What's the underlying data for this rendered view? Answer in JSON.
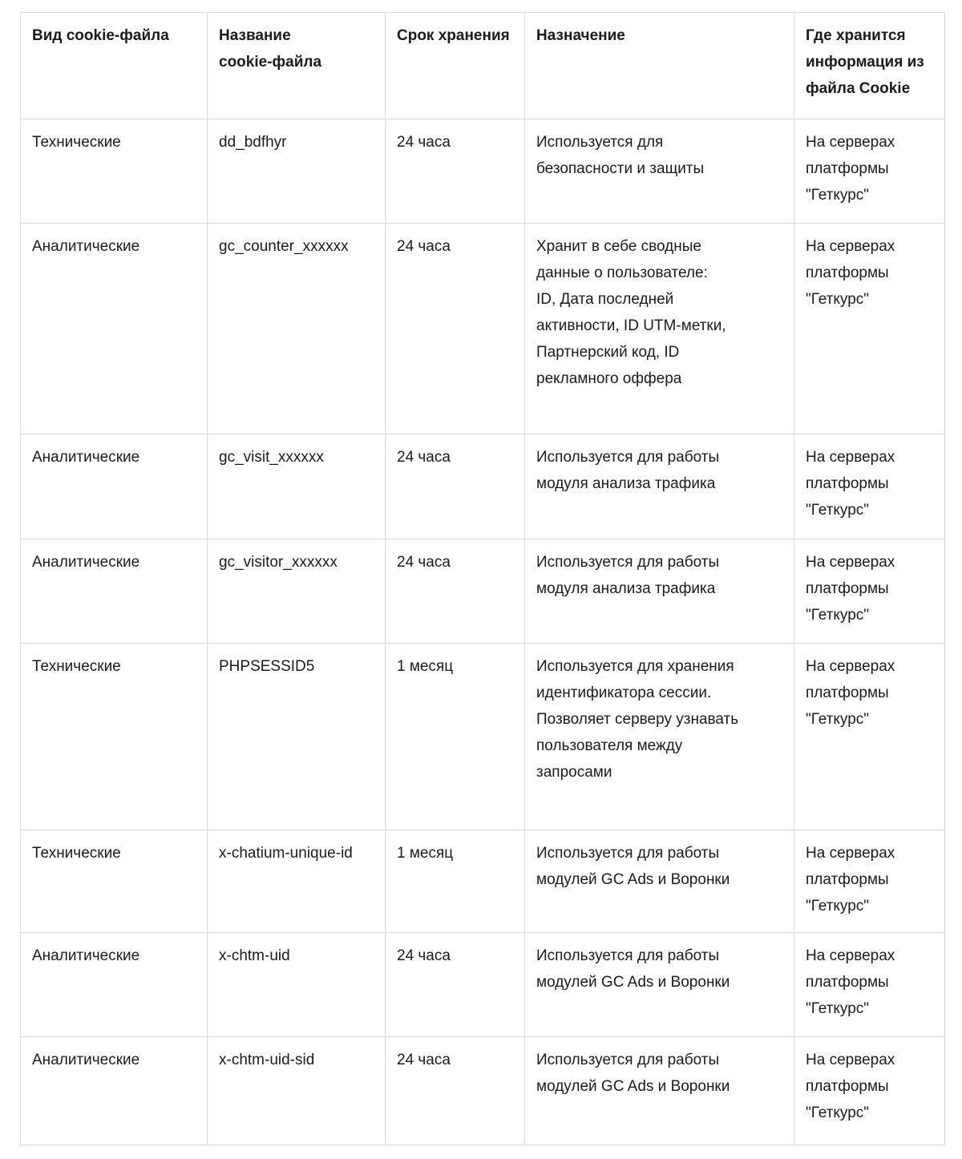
{
  "table": {
    "headers": [
      "Вид cookie-файла",
      "Название\ncookie-файла",
      "Срок хранения",
      "Назначение",
      "Где хранится\nинформация из\nфайла Cookie"
    ],
    "rows": [
      {
        "type": "Технические",
        "name": "dd_bdfhyr",
        "duration": "24 часа",
        "purpose": "Используется для\nбезопасности и защиты",
        "storage": "На серверах\nплатформы\n\"Геткурс\""
      },
      {
        "type": "Аналитические",
        "name": "gc_counter_xxxxxx",
        "duration": "24 часа",
        "purpose": "Хранит в себе сводные\nданные о пользователе:\nID, Дата последней\nактивности, ID UTM-метки,\nПартнерский код, ID\nрекламного оффера",
        "storage": "На серверах\nплатформы\n\"Геткурс\""
      },
      {
        "type": "Аналитические",
        "name": "gc_visit_xxxxxx",
        "duration": "24 часа",
        "purpose": "Используется для работы\nмодуля анализа трафика",
        "storage": "На серверах\nплатформы\n\"Геткурс\""
      },
      {
        "type": "Аналитические",
        "name": "gc_visitor_xxxxxx",
        "duration": "24 часа",
        "purpose": "Используется для работы\nмодуля анализа трафика",
        "storage": "На серверах\nплатформы\n\"Геткурс\""
      },
      {
        "type": "Технические",
        "name": "PHPSESSID5",
        "duration": "1 месяц",
        "purpose": "Используется для хранения\nидентификатора сессии.\nПозволяет серверу узнавать\nпользователя между\nзапросами",
        "storage": "На серверах\nплатформы\n\"Геткурс\""
      },
      {
        "type": "Технические",
        "name": "x-chatium-unique-id",
        "duration": "1 месяц",
        "purpose": "Используется для работы\nмодулей GC Ads и Воронки",
        "storage": "На серверах\nплатформы\n\"Геткурс\""
      },
      {
        "type": "Аналитические",
        "name": "x-chtm-uid",
        "duration": "24 часа",
        "purpose": "Используется для работы\nмодулей GC Ads и Воронки",
        "storage": "На серверах\nплатформы\n\"Геткурс\""
      },
      {
        "type": "Аналитические",
        "name": "x-chtm-uid-sid",
        "duration": "24 часа",
        "purpose": "Используется для работы\nмодулей GC Ads и Воронки",
        "storage": "На серверах\nплатформы\n\"Геткурс\""
      }
    ]
  }
}
